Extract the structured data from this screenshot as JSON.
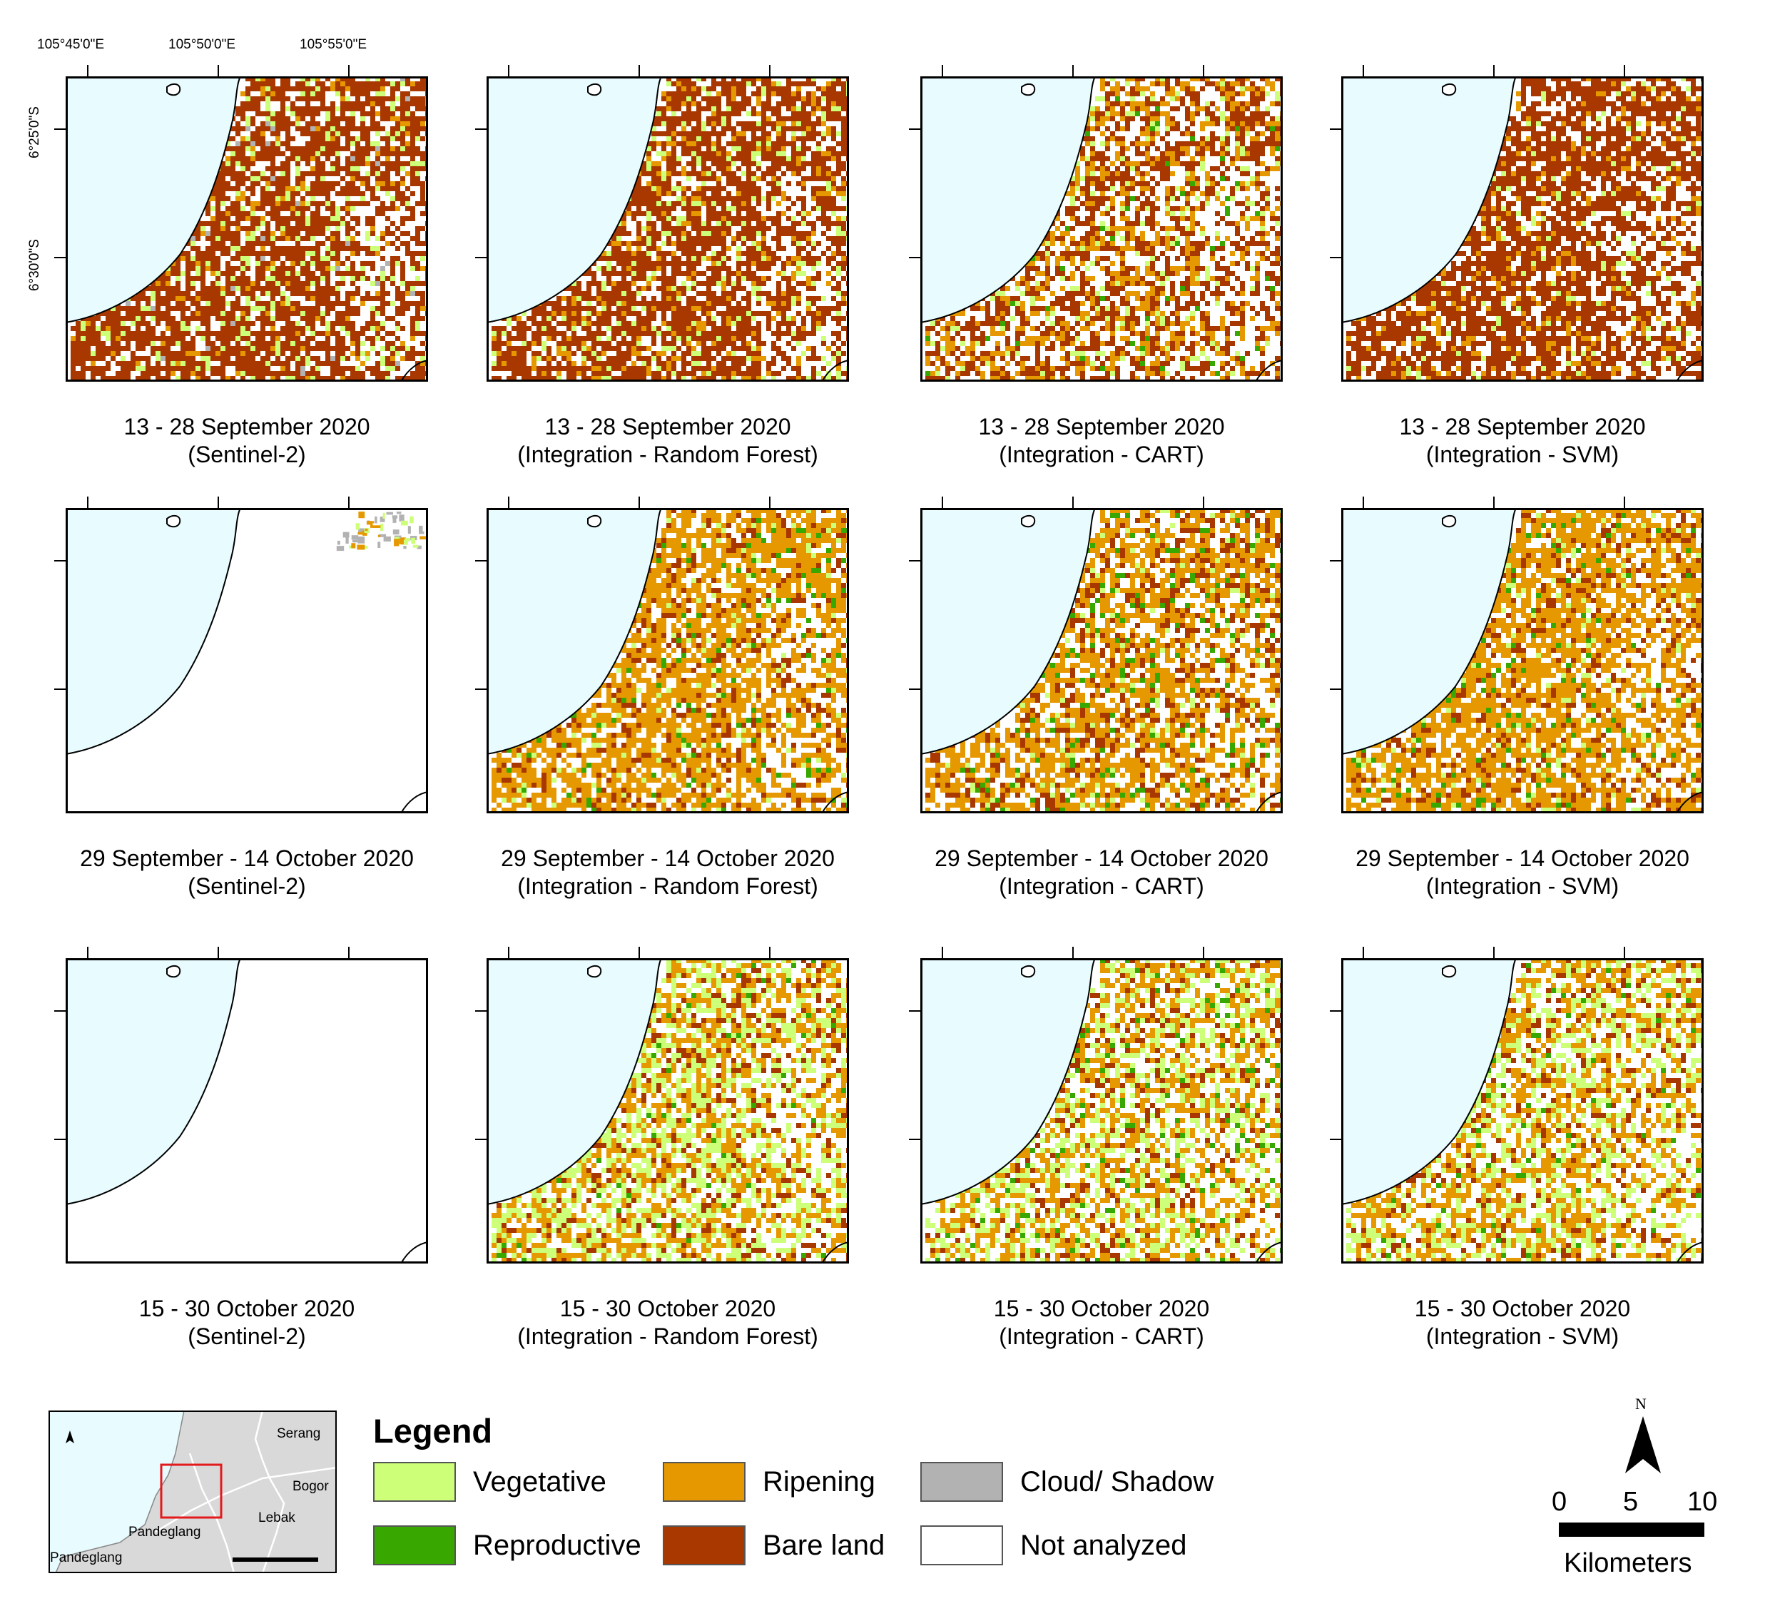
{
  "coordinates": {
    "lon": [
      "105°45'0\"E",
      "105°50'0\"E",
      "105°55'0\"E"
    ],
    "lat": [
      "6°25'0\"S",
      "6°30'0\"S"
    ]
  },
  "rows": [
    {
      "panels": [
        {
          "line1": "13 - 28 September 2020",
          "line2": "(Sentinel-2)",
          "scene": "sep13_s2"
        },
        {
          "line1": "13 - 28 September 2020",
          "line2": "(Integration - Random Forest)",
          "scene": "sep13_rf"
        },
        {
          "line1": "13 - 28 September 2020",
          "line2": "(Integration - CART)",
          "scene": "sep13_cart"
        },
        {
          "line1": "13 - 28 September 2020",
          "line2": "(Integration - SVM)",
          "scene": "sep13_svm"
        }
      ]
    },
    {
      "panels": [
        {
          "line1": "29 September - 14 October 2020",
          "line2": "(Sentinel-2)",
          "scene": "sep29_s2"
        },
        {
          "line1": "29 September - 14 October 2020",
          "line2": "(Integration - Random Forest)",
          "scene": "sep29_rf"
        },
        {
          "line1": "29 September - 14 October 2020",
          "line2": "(Integration - CART)",
          "scene": "sep29_cart"
        },
        {
          "line1": "29 September - 14 October 2020",
          "line2": "(Integration - SVM)",
          "scene": "sep29_svm"
        }
      ]
    },
    {
      "panels": [
        {
          "line1": "15 - 30 October 2020",
          "line2": "(Sentinel-2)",
          "scene": "oct15_s2"
        },
        {
          "line1": "15 - 30 October 2020",
          "line2": "(Integration - Random Forest)",
          "scene": "oct15_rf"
        },
        {
          "line1": "15 - 30 October 2020",
          "line2": "(Integration - CART)",
          "scene": "oct15_cart"
        },
        {
          "line1": "15 - 30 October 2020",
          "line2": "(Integration - SVM)",
          "scene": "oct15_svm"
        }
      ]
    }
  ],
  "legend": {
    "title": "Legend",
    "items": [
      {
        "label": "Vegetative",
        "color": "#cdff78"
      },
      {
        "label": "Reproductive",
        "color": "#38a800"
      },
      {
        "label": "Ripening",
        "color": "#e69800"
      },
      {
        "label": "Bare land",
        "color": "#a83800"
      },
      {
        "label": "Cloud/ Shadow",
        "color": "#b2b2b2"
      },
      {
        "label": "Not analyzed",
        "color": "#ffffff"
      }
    ]
  },
  "colors": {
    "sea": "#e8fbff",
    "vegetative": "#cdff78",
    "reproductive": "#38a800",
    "ripening": "#e69800",
    "bare": "#a83800",
    "cloud": "#b2b2b2",
    "inset_land": "#d9d9d9",
    "study_area_box": "#e31a1c"
  },
  "north_arrow": {
    "label": "N"
  },
  "scale_bar": {
    "ticks": [
      "0",
      "5",
      "10"
    ],
    "unit": "Kilometers"
  },
  "inset": {
    "places": [
      "Serang",
      "Bogor",
      "Lebak",
      "Pandeglang",
      "Pandeglang"
    ]
  }
}
